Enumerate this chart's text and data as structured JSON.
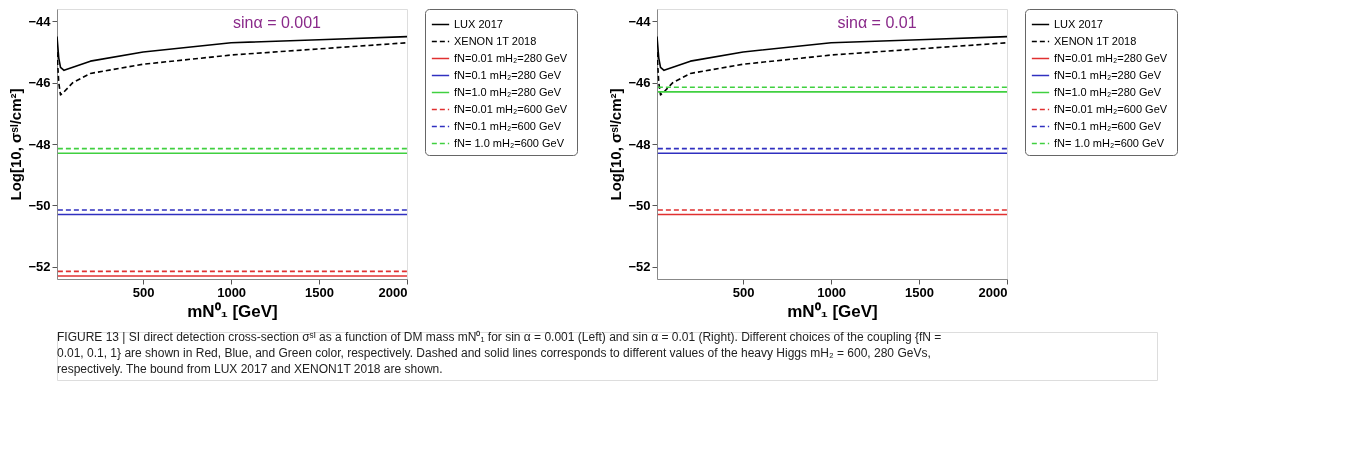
{
  "chart_data": [
    {
      "type": "line",
      "xlabel": "mN⁰₁ [GeV]",
      "ylabel": "Log[10, σˢᴵ/cm²]",
      "xlim": [
        10,
        2000
      ],
      "ylim": [
        -52.4,
        -43.6
      ],
      "xticks": [
        500,
        1000,
        1500,
        2000
      ],
      "yticks": [
        -44,
        -46,
        -48,
        -50,
        -52
      ],
      "grid": false,
      "legend": "right",
      "annotations": [
        "sinα = 0.001"
      ],
      "series": [
        {
          "name": "LUX 2017",
          "color": "#000000",
          "line_style": "solid",
          "x": [
            10,
            20,
            30,
            50,
            100,
            200,
            500,
            1000,
            1500,
            2000
          ],
          "values": [
            -44.5,
            -45.2,
            -45.5,
            -45.6,
            -45.5,
            -45.3,
            -45.0,
            -44.7,
            -44.6,
            -44.5
          ]
        },
        {
          "name": "XENON 1T 2018",
          "color": "#000000",
          "line_style": "dashed",
          "x": [
            10,
            20,
            30,
            50,
            100,
            200,
            500,
            1000,
            1500,
            2000
          ],
          "values": [
            -45.0,
            -46.0,
            -46.4,
            -46.3,
            -46.0,
            -45.7,
            -45.4,
            -45.1,
            -44.9,
            -44.7
          ]
        },
        {
          "name": "fN=0.01  mH₂=280 GeV",
          "color": "#e03030",
          "line_style": "solid",
          "x": [
            15,
            2000
          ],
          "values": [
            -52.3,
            -52.3
          ]
        },
        {
          "name": "fN=0.1  mH₂=280 GeV",
          "color": "#3030c0",
          "line_style": "solid",
          "x": [
            15,
            2000
          ],
          "values": [
            -50.3,
            -50.3
          ]
        },
        {
          "name": "fN=1.0  mH₂=280 GeV",
          "color": "#40d040",
          "line_style": "solid",
          "x": [
            15,
            2000
          ],
          "values": [
            -48.3,
            -48.3
          ]
        },
        {
          "name": "fN=0.01  mH₂=600 GeV",
          "color": "#e03030",
          "line_style": "dashed",
          "x": [
            15,
            2000
          ],
          "values": [
            -52.15,
            -52.15
          ]
        },
        {
          "name": "fN=0.1  mH₂=600 GeV",
          "color": "#3030c0",
          "line_style": "dashed",
          "x": [
            15,
            2000
          ],
          "values": [
            -50.15,
            -50.15
          ]
        },
        {
          "name": "fN= 1.0  mH₂=600 GeV",
          "color": "#40d040",
          "line_style": "dashed",
          "x": [
            15,
            2000
          ],
          "values": [
            -48.15,
            -48.15
          ]
        }
      ]
    },
    {
      "type": "line",
      "xlabel": "mN⁰₁ [GeV]",
      "ylabel": "Log[10, σˢᴵ/cm²]",
      "xlim": [
        10,
        2000
      ],
      "ylim": [
        -52.4,
        -43.6
      ],
      "xticks": [
        500,
        1000,
        1500,
        2000
      ],
      "yticks": [
        -44,
        -46,
        -48,
        -50,
        -52
      ],
      "grid": false,
      "legend": "right",
      "annotations": [
        "sinα = 0.01",
        "FIGURE 13 | SI direct detection cross-section σˢᴵ as a function of DM mass mN⁰₁ for sin α = 0.001 (Left) and sin α = 0.01 (Right). Different choices of the coupling {fN = 0.01, 0.1, 1} are shown in Red, Blue, and Green color, respectively. Dashed and solid lines corresponds to different values of the heavy Higgs mH₂ = 600, 280 GeVs, respectively. The bound from LUX 2017 and XENON1T 2018 are shown."
      ],
      "series": [
        {
          "name": "LUX 2017",
          "color": "#000000",
          "line_style": "solid",
          "x": [
            10,
            20,
            30,
            50,
            100,
            200,
            500,
            1000,
            1500,
            2000
          ],
          "values": [
            -44.5,
            -45.2,
            -45.5,
            -45.6,
            -45.5,
            -45.3,
            -45.0,
            -44.7,
            -44.6,
            -44.5
          ]
        },
        {
          "name": "XENON 1T 2018",
          "color": "#000000",
          "line_style": "dashed",
          "x": [
            10,
            20,
            30,
            50,
            100,
            200,
            500,
            1000,
            1500,
            2000
          ],
          "values": [
            -45.0,
            -46.0,
            -46.4,
            -46.3,
            -46.0,
            -45.7,
            -45.4,
            -45.1,
            -44.9,
            -44.7
          ]
        },
        {
          "name": "fN=0.01  mH₂=280 GeV",
          "color": "#e03030",
          "line_style": "solid",
          "x": [
            15,
            2000
          ],
          "values": [
            -50.3,
            -50.3
          ]
        },
        {
          "name": "fN=0.1  mH₂=280 GeV",
          "color": "#3030c0",
          "line_style": "solid",
          "x": [
            15,
            2000
          ],
          "values": [
            -48.3,
            -48.3
          ]
        },
        {
          "name": "fN=1.0  mH₂=280 GeV",
          "color": "#40d040",
          "line_style": "solid",
          "x": [
            15,
            2000
          ],
          "values": [
            -46.3,
            -46.3
          ]
        },
        {
          "name": "fN=0.01  mH₂=600 GeV",
          "color": "#e03030",
          "line_style": "dashed",
          "x": [
            15,
            2000
          ],
          "values": [
            -50.15,
            -50.15
          ]
        },
        {
          "name": "fN=0.1  mH₂=600 GeV",
          "color": "#3030c0",
          "line_style": "dashed",
          "x": [
            15,
            2000
          ],
          "values": [
            -48.15,
            -48.15
          ]
        },
        {
          "name": "fN= 1.0  mH₂=600 GeV",
          "color": "#40d040",
          "line_style": "dashed",
          "x": [
            15,
            2000
          ],
          "values": [
            -46.15,
            -46.15
          ]
        }
      ]
    }
  ]
}
